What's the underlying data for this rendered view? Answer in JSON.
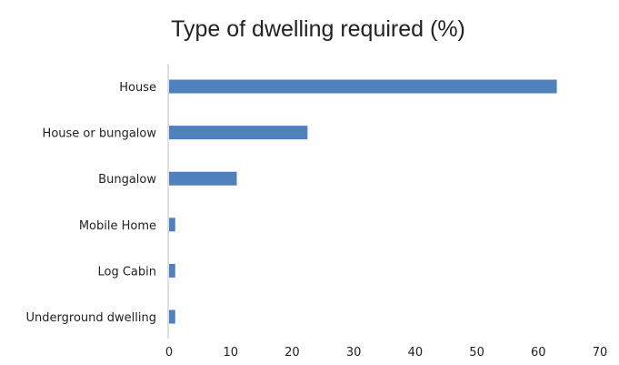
{
  "chart_data": {
    "type": "bar",
    "orientation": "horizontal",
    "title": "Type of dwelling  required (%)",
    "xlabel": "",
    "ylabel": "",
    "categories": [
      "House",
      "House or bungalow",
      "Bungalow",
      "Mobile Home",
      "Log Cabin",
      "Underground dwelling"
    ],
    "values": [
      63,
      22.5,
      11,
      1,
      1,
      1
    ],
    "xlim": [
      0,
      70
    ],
    "x_ticks": [
      "0",
      "10",
      "20",
      "30",
      "40",
      "50",
      "60",
      "70"
    ],
    "grid": false,
    "legend": "none",
    "bar_color": "#4f81bd"
  }
}
